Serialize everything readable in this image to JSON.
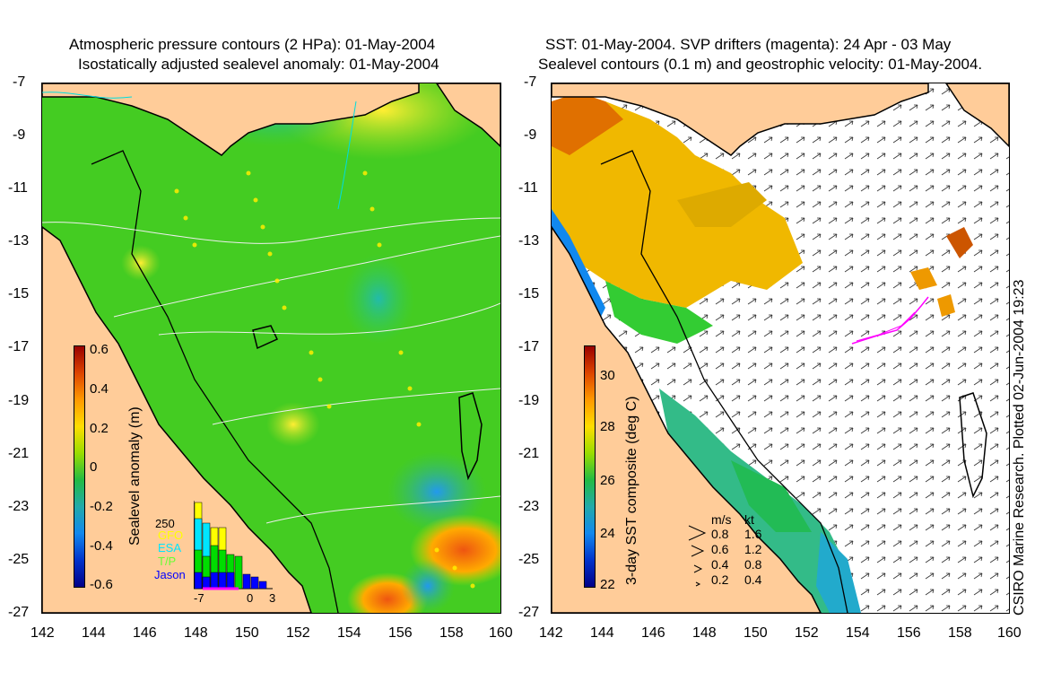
{
  "left_panel": {
    "title_line1": "Atmospheric pressure contours (2 HPa): 01-May-2004",
    "title_line2": "Isostatically adjusted sealevel anomaly: 01-May-2004",
    "colorbar": {
      "label": "Sealevel anomaly (m)",
      "ticks": [
        "0.6",
        "0.4",
        "0.2",
        "0",
        "-0.2",
        "-0.4",
        "-0.6"
      ]
    },
    "histogram": {
      "y_label": "250",
      "satellites": [
        {
          "name": "GFO",
          "color": "#ffff00"
        },
        {
          "name": "ESA",
          "color": "#00e5ff"
        },
        {
          "name": "T/P",
          "color": "#00dd00"
        },
        {
          "name": "Jason",
          "color": "#0000ff"
        }
      ],
      "x_ticks": [
        "-7",
        "0",
        "3"
      ]
    }
  },
  "right_panel": {
    "title_line1": "SST: 01-May-2004. SVP drifters (magenta): 24 Apr - 03 May",
    "title_line2": "Sealevel contours (0.1 m) and geostrophic velocity: 01-May-2004.",
    "colorbar": {
      "label": "3-day SST composite (deg C)",
      "ticks": [
        "30",
        "28",
        "26",
        "24",
        "22"
      ]
    },
    "velocity_legend": {
      "header_ms": "m/s",
      "header_kt": "kt",
      "rows": [
        {
          "ms": "0.8",
          "kt": "1.6"
        },
        {
          "ms": "0.6",
          "kt": "1.2"
        },
        {
          "ms": "0.4",
          "kt": "0.8"
        },
        {
          "ms": "0.2",
          "kt": "0.4"
        }
      ]
    }
  },
  "axes": {
    "lat_ticks": [
      "-7",
      "-9",
      "-11",
      "-13",
      "-15",
      "-17",
      "-19",
      "-21",
      "-23",
      "-25",
      "-27"
    ],
    "lon_ticks": [
      "142",
      "144",
      "146",
      "148",
      "150",
      "152",
      "154",
      "156",
      "158",
      "160"
    ]
  },
  "credit": "CSIRO Marine Research. Plotted 02-Jun-2004 19:23",
  "colors": {
    "land": "#ffcc99",
    "sea_anomaly_base": "#44cc22",
    "coast_line": "#000000",
    "drifter": "#ff00ff"
  }
}
